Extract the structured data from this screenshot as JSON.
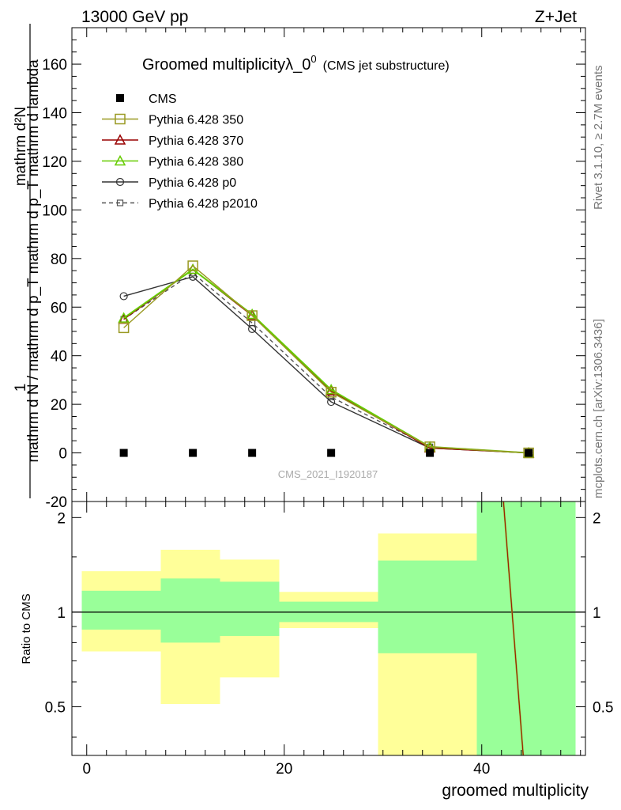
{
  "header": {
    "left": "13000 GeV pp",
    "right": "Z+Jet"
  },
  "side_labels": {
    "rivet": "Rivet 3.1.10, ≥ 2.7M events",
    "mcplots": "mcplots.cern.ch [arXiv:1306.3436]"
  },
  "chart_data": [
    {
      "type": "line",
      "title": "Groomed multiplicityλ_0",
      "title_superscript": "0",
      "subtitle": "(CMS jet substructure)",
      "ylabel_top": "mathrm d²N",
      "ylabel_bottom": "mathrm d N / mathrm d p_T mathrm d p_T mathrm d lambda",
      "ylabel_one": "1",
      "watermark": "CMS_2021_I1920187",
      "ylim": [
        -20,
        175
      ],
      "yticks": [
        -20,
        0,
        20,
        40,
        60,
        80,
        100,
        120,
        140,
        160
      ],
      "grid": false,
      "legend_position": "top-left",
      "x": [
        3.75,
        10.75,
        16.75,
        24.75,
        34.75,
        44.75
      ],
      "series": [
        {
          "name": "CMS",
          "color": "#000000",
          "marker": "filled-square",
          "line": "none",
          "values": [
            0,
            0,
            0,
            0,
            0,
            0
          ]
        },
        {
          "name": "Pythia 6.428 350",
          "color": "#999922",
          "marker": "open-square",
          "line": "solid",
          "values": [
            51.5,
            77.0,
            56.5,
            25.0,
            2.5,
            0.0
          ]
        },
        {
          "name": "Pythia 6.428 370",
          "color": "#990000",
          "marker": "open-triangle",
          "line": "solid",
          "values": [
            55.0,
            75.5,
            56.5,
            25.5,
            2.0,
            0.0
          ]
        },
        {
          "name": "Pythia 6.428 380",
          "color": "#66cc00",
          "marker": "open-triangle",
          "line": "solid",
          "values": [
            55.5,
            75.5,
            57.0,
            26.0,
            2.5,
            0.0
          ]
        },
        {
          "name": "Pythia 6.428 p0",
          "color": "#333333",
          "marker": "open-circle",
          "line": "solid",
          "values": [
            64.5,
            72.5,
            51.0,
            21.0,
            2.0,
            0.0
          ]
        },
        {
          "name": "Pythia 6.428 p2010",
          "color": "#555555",
          "marker": "open-small-square",
          "line": "dashed",
          "values": [
            55.0,
            74.0,
            53.5,
            23.0,
            2.5,
            0.0
          ]
        }
      ]
    },
    {
      "type": "area",
      "ylabel": "Ratio to CMS",
      "xlabel": "groomed multiplicity",
      "xlim": [
        -1.5,
        50.5
      ],
      "xticks": [
        0,
        20,
        40
      ],
      "ylim": [
        0.35,
        2.25
      ],
      "yticks": [
        0.5,
        1,
        2
      ],
      "reference_line": 1,
      "bins": [
        {
          "x_low": -0.5,
          "x_high": 7.5,
          "green_low": 0.88,
          "green_high": 1.17,
          "yellow_low": 0.75,
          "yellow_high": 1.35
        },
        {
          "x_low": 7.5,
          "x_high": 13.5,
          "green_low": 0.8,
          "green_high": 1.28,
          "yellow_low": 0.51,
          "yellow_high": 1.58
        },
        {
          "x_low": 13.5,
          "x_high": 19.5,
          "green_low": 0.84,
          "green_high": 1.25,
          "yellow_low": 0.62,
          "yellow_high": 1.47
        },
        {
          "x_low": 19.5,
          "x_high": 29.5,
          "green_low": 0.93,
          "green_high": 1.08,
          "yellow_low": 0.89,
          "yellow_high": 1.16
        },
        {
          "x_low": 29.5,
          "x_high": 39.5,
          "green_low": 0.74,
          "green_high": 1.46,
          "yellow_low": 0.35,
          "yellow_high": 1.78
        },
        {
          "x_low": 39.5,
          "x_high": 49.5,
          "green_low": 0.35,
          "green_high": 2.25,
          "yellow_low": 0.35,
          "yellow_high": 2.25
        }
      ],
      "colors": {
        "green": "#99ff99",
        "yellow": "#ffff99"
      },
      "ratio_line": {
        "x_start": 42.2,
        "y_start": 2.25,
        "x_end": 44.2,
        "y_end": 0.35,
        "colors": [
          "#999922",
          "#990000"
        ]
      }
    }
  ]
}
